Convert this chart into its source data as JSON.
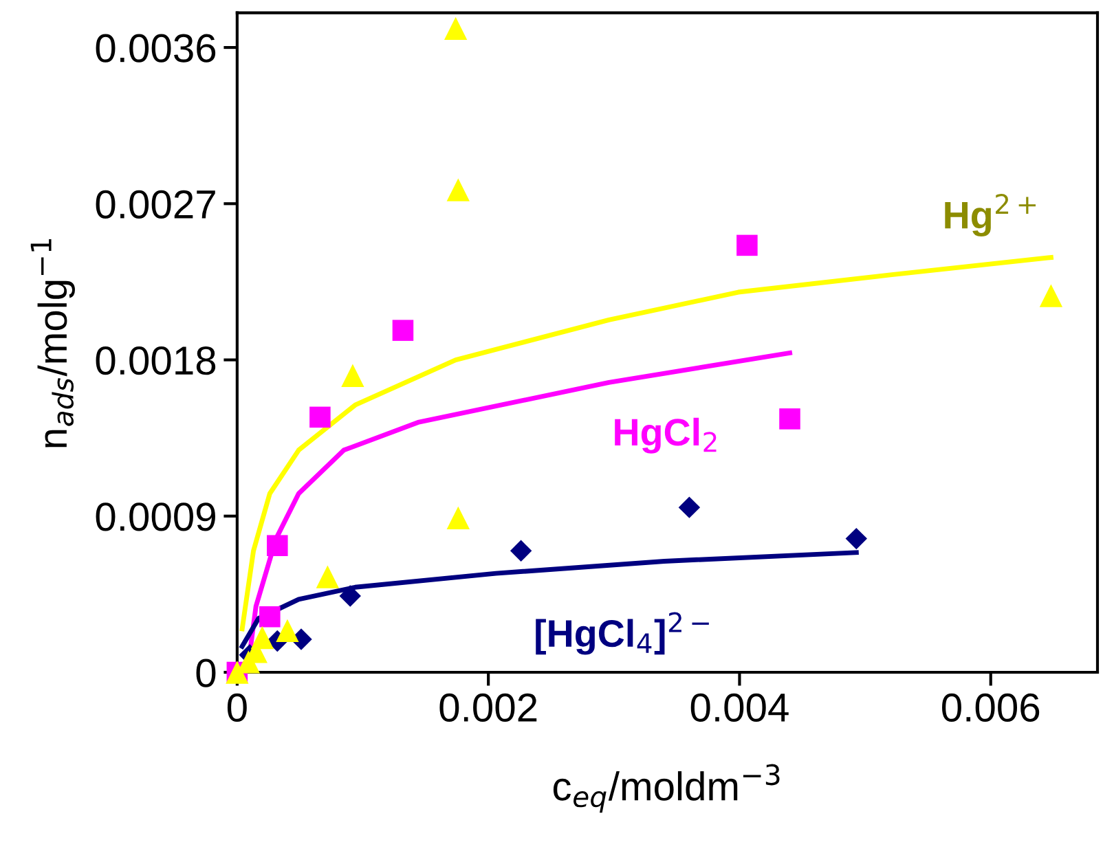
{
  "chart_data": {
    "type": "scatter",
    "xlabel": "c$_{eq}$/moldm$^{−3}$",
    "ylabel": "n$_{ads}$/molg$^{−1}$",
    "xlim": [
      0,
      0.00685
    ],
    "ylim": [
      0,
      0.0038
    ],
    "xticks": [
      0,
      0.002,
      0.004,
      0.006
    ],
    "yticks": [
      0,
      0.0009,
      0.0018,
      0.0027,
      0.0036
    ],
    "grid": false,
    "series": [
      {
        "marker": "triangle",
        "color": "#ffff00",
        "x": [
          0.00174,
          0.00176,
          0.00648,
          0.00092,
          0.00176,
          0.00072,
          0.0004,
          0.0002,
          0.00015,
          9e-05,
          0.0
        ],
        "values": [
          0.00371,
          0.00278,
          0.00217,
          0.00171,
          0.00089,
          0.00055,
          0.00024,
          0.0002,
          0.00012,
          6e-05,
          0.0
        ]
      },
      {
        "marker": "square",
        "color": "#ff00ff",
        "x": [
          0.00406,
          0.00132,
          0.00066,
          0.0044,
          0.00032,
          0.00026,
          0.0
        ],
        "values": [
          0.00246,
          0.00197,
          0.00147,
          0.00146,
          0.00073,
          0.00032,
          0.0
        ]
      },
      {
        "marker": "diamond",
        "color": "#000080",
        "x": [
          0.0036,
          0.00493,
          0.00226,
          0.0009,
          0.00051,
          0.00032,
          0.0001
        ],
        "values": [
          0.00095,
          0.00077,
          0.0007,
          0.00044,
          0.00019,
          0.00018,
          0.0001
        ]
      },
      {
        "type": "line",
        "name": "Hg$^{2+}$",
        "marker": "none",
        "color": "#ffff00",
        "x": [
          4e-05,
          0.00013,
          0.00026,
          0.00049,
          0.00094,
          0.00174,
          0.00296,
          0.00399,
          0.0052,
          0.00648
        ],
        "values": [
          0.00025,
          0.0007,
          0.00103,
          0.00128,
          0.00154,
          0.0018,
          0.00203,
          0.00219,
          0.00229,
          0.00239
        ]
      },
      {
        "type": "line",
        "name": "HgCl$_{2}$",
        "marker": "none",
        "color": "#ff00ff",
        "x": [
          8e-05,
          0.00015,
          0.00031,
          0.00049,
          0.00085,
          0.00144,
          0.00296,
          0.0044
        ],
        "values": [
          0.0,
          0.00038,
          0.00077,
          0.00103,
          0.00128,
          0.00144,
          0.00167,
          0.00184
        ]
      },
      {
        "type": "line",
        "name": "[HgCl$_{4}$]$^{2−}$",
        "marker": "none",
        "color": "#000080",
        "x": [
          4e-05,
          0.00017,
          0.00049,
          0.00094,
          0.00206,
          0.0034,
          0.00493
        ],
        "values": [
          0.00015,
          0.00031,
          0.00042,
          0.00049,
          0.00057,
          0.00064,
          0.00069
        ]
      }
    ]
  }
}
